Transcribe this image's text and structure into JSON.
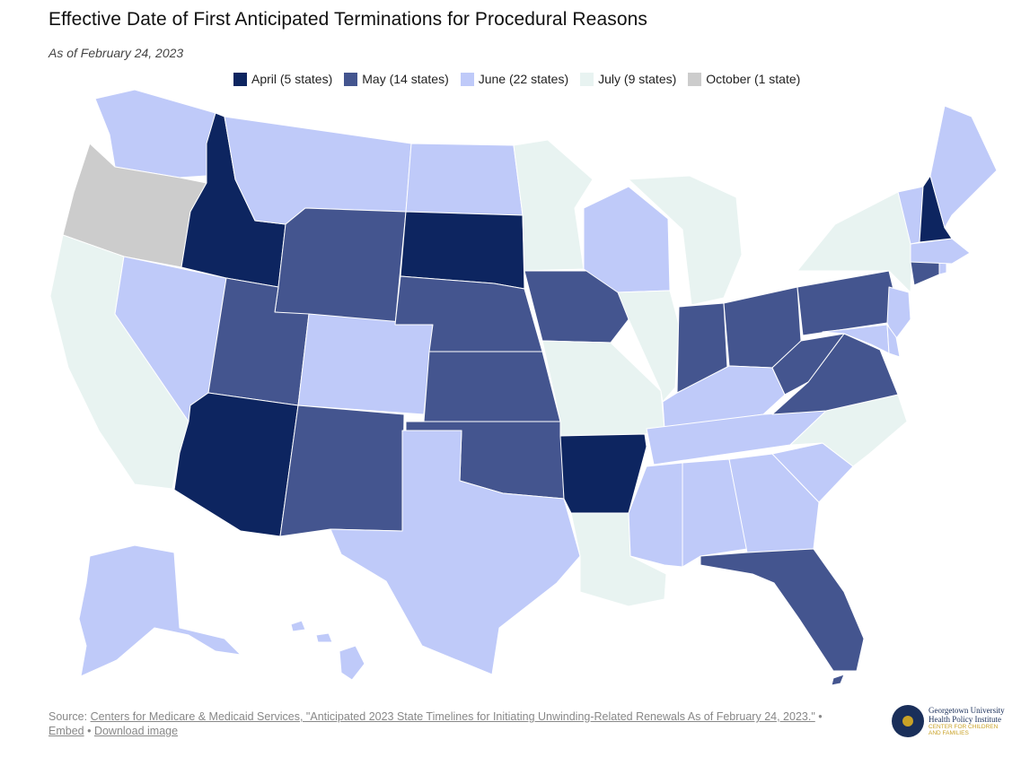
{
  "header": {
    "title": "Effective Date of First Anticipated Terminations for Procedural Reasons",
    "subtitle": "As of February 24, 2023"
  },
  "legend": [
    {
      "label": "April (5 states)",
      "color": "#0d2560"
    },
    {
      "label": "May (14 states)",
      "color": "#44558f"
    },
    {
      "label": "June (22 states)",
      "color": "#bfcaf9"
    },
    {
      "label": "July (9 states)",
      "color": "#e8f3f1"
    },
    {
      "label": "October (1 state)",
      "color": "#cccccc"
    }
  ],
  "state_groups": {
    "april": [
      "ID",
      "SD",
      "AR",
      "AZ",
      "NH"
    ],
    "may": [
      "WY",
      "UT",
      "NE",
      "KS",
      "OK",
      "NM",
      "IA",
      "IN",
      "OH",
      "PA",
      "WV",
      "VA",
      "CT",
      "FL"
    ],
    "june": [
      "WA",
      "MT",
      "ND",
      "NV",
      "CO",
      "TX",
      "WI",
      "KY",
      "TN",
      "MS",
      "AL",
      "GA",
      "SC",
      "MD",
      "DE",
      "NJ",
      "MA",
      "VT",
      "ME",
      "AK",
      "HI",
      "RI"
    ],
    "july": [
      "CA",
      "MN",
      "MO",
      "IL",
      "MI",
      "LA",
      "NC",
      "NY",
      "DC"
    ],
    "october": [
      "OR"
    ]
  },
  "footer": {
    "source_prefix": "Source: ",
    "source_link": "Centers for Medicare & Medicaid Services, \"Anticipated 2023 State Timelines for Initiating Unwinding-Related Renewals As of February 24, 2023.\"",
    "separator": " • ",
    "embed": "Embed",
    "download": "Download image"
  },
  "logo": {
    "line1": "Georgetown University",
    "line2": "Health Policy Institute",
    "line3": "CENTER FOR CHILDREN",
    "line4": "AND FAMILIES"
  }
}
